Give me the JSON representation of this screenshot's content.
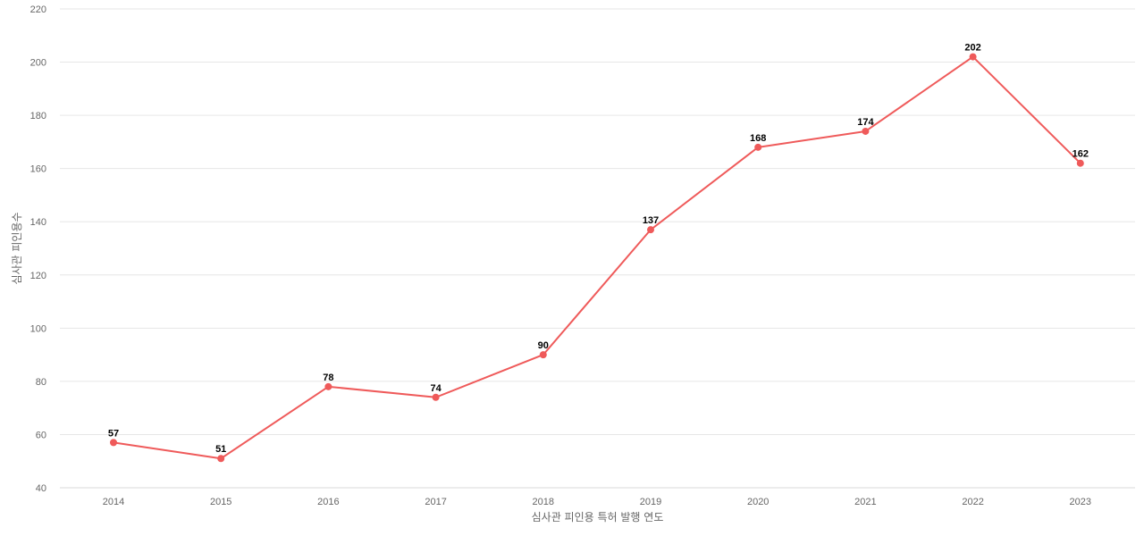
{
  "chart_data": {
    "type": "line",
    "title": "",
    "xlabel": "심사관 피인용 특허 발행 연도",
    "ylabel": "심사관 피인용수",
    "categories": [
      "2014",
      "2015",
      "2016",
      "2017",
      "2018",
      "2019",
      "2020",
      "2021",
      "2022",
      "2023"
    ],
    "series": [
      {
        "values": [
          57,
          51,
          78,
          74,
          90,
          137,
          168,
          174,
          202,
          162
        ],
        "color": "#ef5a5a"
      }
    ],
    "ylim": [
      40,
      220
    ],
    "yticks": [
      40,
      60,
      80,
      100,
      120,
      140,
      160,
      180,
      200,
      220
    ],
    "grid": true,
    "legend": "none",
    "data_labels": true
  }
}
